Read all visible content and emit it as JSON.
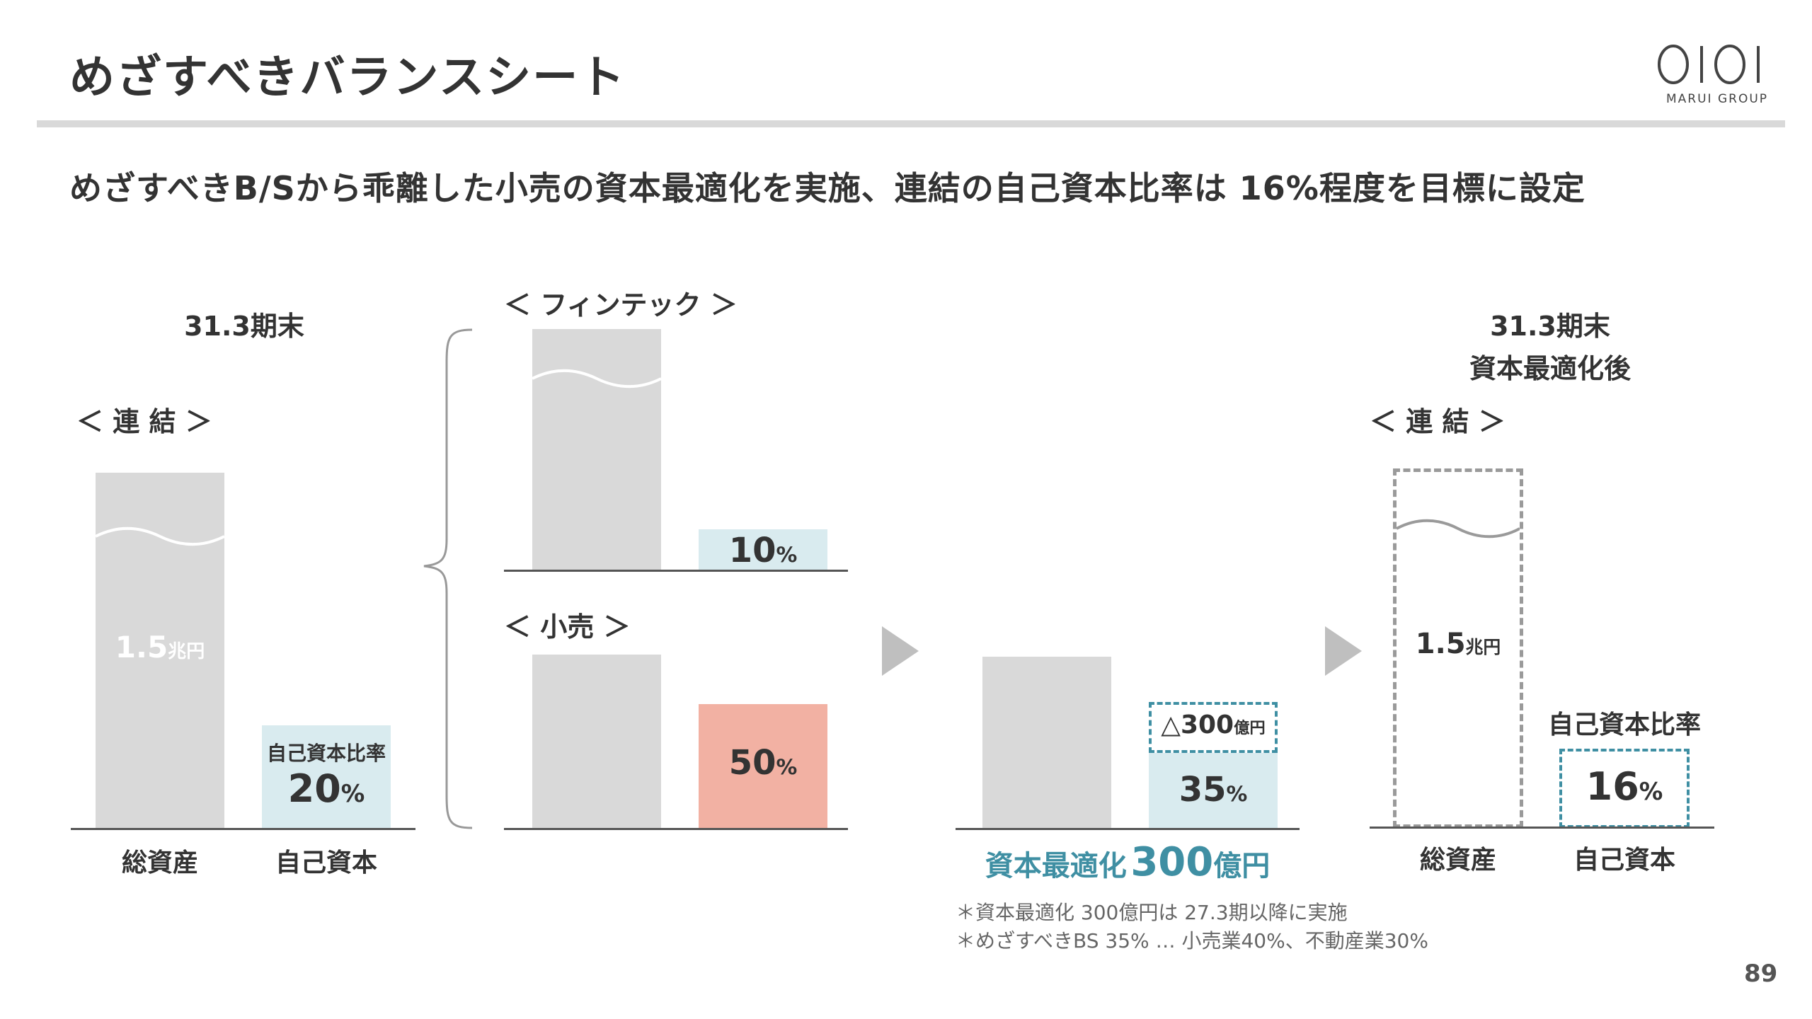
{
  "title": "めざすべきバランスシート",
  "logo_text": "MARUI GROUP",
  "subtitle": "めざすべきB/Sから乖離した小売の資本最適化を実施、連結の自己資本比率は 16%程度を目標に設定",
  "page_number": "89",
  "panel1": {
    "period": "31.3期末",
    "segment": "＜ 連 結 ＞",
    "total_assets_value": "1.5",
    "total_assets_unit": "兆円",
    "equity_ratio_label": "自己資本比率",
    "equity_ratio_value": "20",
    "equity_ratio_unit": "%",
    "x_label_assets": "総資産",
    "x_label_equity": "自己資本"
  },
  "panel2": {
    "fintech_label": "＜ フィンテック ＞",
    "fintech_value": "10",
    "fintech_unit": "%",
    "retail_label": "＜ 小売 ＞",
    "retail_value": "50",
    "retail_unit": "%"
  },
  "panel3": {
    "reduction_value": "△300",
    "reduction_unit": "億円",
    "result_value": "35",
    "result_unit": "%",
    "caption_prefix": "資本最適化",
    "caption_value": "300",
    "caption_unit": "億円"
  },
  "panel4": {
    "period_line1": "31.3期末",
    "period_line2": "資本最適化後",
    "segment": "＜ 連 結 ＞",
    "total_assets_value": "1.5",
    "total_assets_unit": "兆円",
    "equity_ratio_label": "自己資本比率",
    "equity_ratio_value": "16",
    "equity_ratio_unit": "%",
    "x_label_assets": "総資産",
    "x_label_equity": "自己資本"
  },
  "notes": [
    "＊資本最適化 300億円は 27.3期以降に実施",
    "＊めざすべきBS 35% … 小売業40%、不動産業30%"
  ],
  "colors": {
    "gray_bar": "#d9d9d9",
    "equity_blue": "#d9ebef",
    "retail_red": "#f2b1a3",
    "teal_accent": "#3f8fa3",
    "arrow_gray": "#bfbfbf"
  },
  "chart_data": [
    {
      "type": "bar",
      "panel": "31.3期末 ＜ 連 結 ＞",
      "categories": [
        "総資産",
        "自己資本"
      ],
      "values": [
        1.5,
        20
      ],
      "value_units": [
        "兆円",
        "%"
      ]
    },
    {
      "type": "bar",
      "panel": "＜ フィンテック ＞",
      "categories": [
        "総資産",
        "自己資本"
      ],
      "values": [
        null,
        10
      ],
      "value_units": [
        "",
        "%"
      ]
    },
    {
      "type": "bar",
      "panel": "＜ 小売 ＞",
      "categories": [
        "総資産",
        "自己資本"
      ],
      "values": [
        null,
        50
      ],
      "value_units": [
        "",
        "%"
      ]
    },
    {
      "type": "bar",
      "panel": "資本最適化 300億円",
      "categories": [
        "総資産",
        "自己資本"
      ],
      "values": [
        null,
        35
      ],
      "value_units": [
        "",
        "%"
      ],
      "annotation": "△300億円"
    },
    {
      "type": "bar",
      "panel": "31.3期末 資本最適化後 ＜ 連 結 ＞",
      "categories": [
        "総資産",
        "自己資本"
      ],
      "values": [
        1.5,
        16
      ],
      "value_units": [
        "兆円",
        "%"
      ]
    }
  ]
}
